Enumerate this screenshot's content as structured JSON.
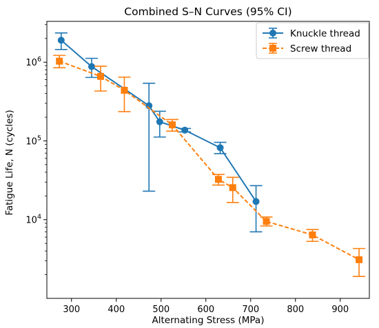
{
  "chart_data": {
    "type": "line",
    "title": "Combined S–N Curves (95% CI)",
    "xlabel": "Alternating Stress (MPa)",
    "ylabel": "Fatigue Life, N (cycles)",
    "xlim": [
      245,
      965
    ],
    "ylim": [
      1000,
      3300000
    ],
    "yscale": "log",
    "grid": false,
    "legend_position": "top-right",
    "x_ticks": [
      {
        "value": 300,
        "label": "300"
      },
      {
        "value": 400,
        "label": "400"
      },
      {
        "value": 500,
        "label": "500"
      },
      {
        "value": 600,
        "label": "600"
      },
      {
        "value": 700,
        "label": "700"
      },
      {
        "value": 800,
        "label": "800"
      },
      {
        "value": 900,
        "label": "900"
      }
    ],
    "y_ticks": [
      {
        "value": 10000,
        "base": "10",
        "exp": "4"
      },
      {
        "value": 100000,
        "base": "10",
        "exp": "5"
      },
      {
        "value": 1000000,
        "base": "10",
        "exp": "6"
      }
    ],
    "series": [
      {
        "name": "Knuckle thread",
        "color": "#1f77b4",
        "marker": "circle",
        "linestyle": "solid",
        "points": [
          {
            "x": 277,
            "y": 1900000,
            "lo": 1450000,
            "hi": 2350000
          },
          {
            "x": 345,
            "y": 880000,
            "lo": 640000,
            "hi": 1120000
          },
          {
            "x": 473,
            "y": 280000,
            "lo": 23000,
            "hi": 540000
          },
          {
            "x": 497,
            "y": 175000,
            "lo": 112000,
            "hi": 238000
          },
          {
            "x": 553,
            "y": 137000,
            "lo": 130000,
            "hi": 144000
          },
          {
            "x": 632,
            "y": 82000,
            "lo": 69000,
            "hi": 96000
          },
          {
            "x": 712,
            "y": 17000,
            "lo": 7000,
            "hi": 27000
          }
        ]
      },
      {
        "name": "Screw thread",
        "color": "#ff7f0e",
        "marker": "square",
        "linestyle": "dashed",
        "points": [
          {
            "x": 273,
            "y": 1030000,
            "lo": 850000,
            "hi": 1220000
          },
          {
            "x": 365,
            "y": 660000,
            "lo": 430000,
            "hi": 890000
          },
          {
            "x": 418,
            "y": 440000,
            "lo": 235000,
            "hi": 645000
          },
          {
            "x": 525,
            "y": 160000,
            "lo": 133000,
            "hi": 187000
          },
          {
            "x": 628,
            "y": 32500,
            "lo": 27500,
            "hi": 37500
          },
          {
            "x": 660,
            "y": 25500,
            "lo": 16500,
            "hi": 34500
          },
          {
            "x": 735,
            "y": 9500,
            "lo": 8300,
            "hi": 10800
          },
          {
            "x": 838,
            "y": 6400,
            "lo": 5300,
            "hi": 7500
          },
          {
            "x": 942,
            "y": 3100,
            "lo": 1900,
            "hi": 4300
          }
        ]
      }
    ]
  }
}
